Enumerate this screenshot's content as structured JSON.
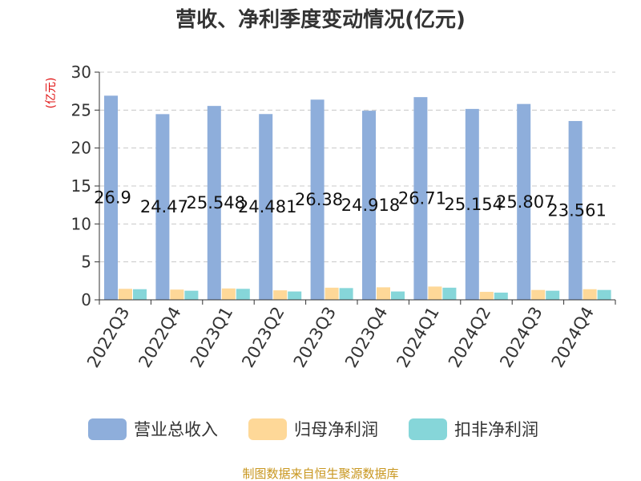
{
  "chart_data": {
    "type": "bar",
    "title": "营收、净利季度变动情况(亿元)",
    "unit_label": "(亿元)",
    "categories": [
      "2022Q3",
      "2022Q4",
      "2023Q1",
      "2023Q2",
      "2023Q3",
      "2023Q4",
      "2024Q1",
      "2024Q2",
      "2024Q3",
      "2024Q4"
    ],
    "series": [
      {
        "name": "营业总收入",
        "color": "#8eaedb",
        "values": [
          26.9,
          24.47,
          25.548,
          24.481,
          26.38,
          24.918,
          26.71,
          25.154,
          25.807,
          23.561
        ],
        "labels": [
          "26.9",
          "24.47",
          "25.548",
          "24.481",
          "26.38",
          "24.918",
          "26.71",
          "25.154",
          "25.807",
          "23.561"
        ]
      },
      {
        "name": "归母净利润",
        "color": "#fed898",
        "values": [
          1.45,
          1.35,
          1.5,
          1.25,
          1.6,
          1.65,
          1.75,
          1.05,
          1.3,
          1.4
        ]
      },
      {
        "name": "扣非净利润",
        "color": "#86d6d9",
        "values": [
          1.4,
          1.2,
          1.45,
          1.1,
          1.55,
          1.1,
          1.6,
          0.95,
          1.2,
          1.3
        ]
      }
    ],
    "y_ticks": [
      "0",
      "5",
      "10",
      "15",
      "20",
      "25",
      "30"
    ],
    "ylim": [
      0,
      30
    ],
    "grid": true,
    "legend_position": "bottom"
  },
  "source": "制图数据来自恒生聚源数据库"
}
